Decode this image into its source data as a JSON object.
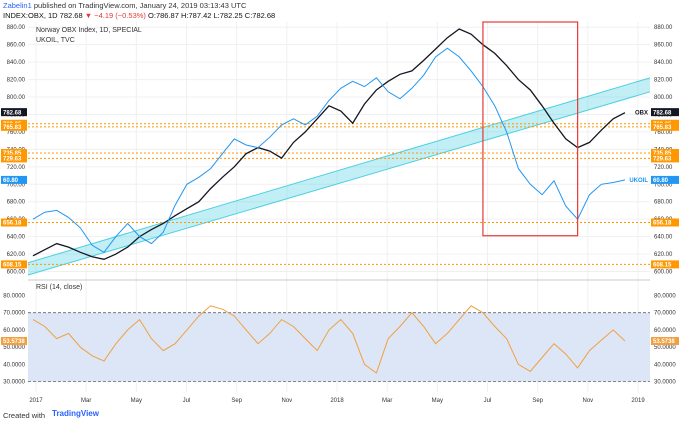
{
  "header": {
    "author": "Zabelin1",
    "published_text": "published on TradingView.com, January 24, 2019 03:13:43 UTC",
    "symbol_line": "INDEX:OBX, 1D 782.68",
    "change": "▼ −4.19 (−0.53%)",
    "ohlc": "O:786.87 H:787.42 L:782.25 C:782.68"
  },
  "legend": {
    "main": "Norway OBX Index, 1D, SPECIAL",
    "overlay": "UKOIL, TVC",
    "rsi": "RSI (14, close)"
  },
  "footer": {
    "created": "Created with",
    "brand": "TradingView"
  },
  "colors": {
    "obx": "#131722",
    "ukoil": "#2196f3",
    "channel": "#4dd0e1",
    "level": "#ff9800",
    "rsi": "#f0a040",
    "box": "#e53935"
  },
  "chart_data": {
    "type": "line",
    "x_ticks": [
      "2017",
      "Mar",
      "May",
      "Jul",
      "Sep",
      "Nov",
      "2018",
      "Mar",
      "May",
      "Jul",
      "Sep",
      "Nov",
      "2019"
    ],
    "y_ticks": [
      600,
      620,
      640,
      660,
      680,
      700,
      720,
      740,
      760,
      780,
      800,
      820,
      840,
      860,
      880
    ],
    "ylim": [
      596,
      886
    ],
    "series": [
      {
        "name": "Norway OBX Index",
        "values": [
          618,
          625,
          632,
          628,
          622,
          617,
          614,
          620,
          628,
          640,
          648,
          655,
          664,
          672,
          680,
          695,
          708,
          720,
          735,
          742,
          738,
          730,
          748,
          760,
          775,
          790,
          784,
          770,
          792,
          808,
          818,
          826,
          830,
          842,
          855,
          868,
          878,
          872,
          860,
          850,
          836,
          820,
          808,
          790,
          770,
          752,
          742,
          748,
          762,
          775,
          782
        ]
      },
      {
        "name": "UKOIL",
        "values": [
          660,
          668,
          670,
          662,
          650,
          630,
          622,
          640,
          655,
          640,
          632,
          645,
          676,
          700,
          708,
          718,
          735,
          752,
          745,
          742,
          754,
          768,
          775,
          768,
          778,
          796,
          810,
          818,
          812,
          822,
          806,
          798,
          810,
          825,
          846,
          856,
          846,
          830,
          812,
          790,
          760,
          718,
          700,
          688,
          704,
          675,
          660,
          688,
          700,
          702,
          705
        ]
      }
    ],
    "channel": {
      "lower_start": 596,
      "lower_end": 806,
      "upper_start": 610,
      "upper_end": 822
    },
    "levels": [
      {
        "label": "769.35",
        "value": 769.35
      },
      {
        "label": "765.83",
        "value": 765.83
      },
      {
        "label": "735.85",
        "value": 735.85
      },
      {
        "label": "729.63",
        "value": 729.63
      },
      {
        "label": "656.18",
        "value": 656.18
      },
      {
        "label": "608.15",
        "value": 608.15
      }
    ],
    "last_tags": [
      {
        "label": "782.68",
        "value": 782.68,
        "name": "OBX"
      },
      {
        "label": "60.80",
        "value": 705,
        "name": "UKOIL"
      }
    ],
    "highlight_box": {
      "from_index": 38,
      "to_index": 46,
      "y_top": 886,
      "y_bottom": 641
    },
    "rsi": {
      "ylim": [
        24,
        82
      ],
      "y_ticks": [
        30,
        40,
        50,
        60,
        70,
        80
      ],
      "bands": [
        30,
        70
      ],
      "last": "53.5738",
      "values": [
        66,
        62,
        55,
        58,
        50,
        45,
        42,
        52,
        60,
        66,
        55,
        48,
        52,
        60,
        68,
        74,
        72,
        68,
        60,
        52,
        58,
        66,
        62,
        55,
        48,
        60,
        66,
        58,
        40,
        35,
        55,
        62,
        70,
        62,
        52,
        58,
        66,
        74,
        70,
        62,
        55,
        40,
        36,
        44,
        52,
        46,
        38,
        48,
        54,
        60,
        53.57
      ]
    }
  }
}
